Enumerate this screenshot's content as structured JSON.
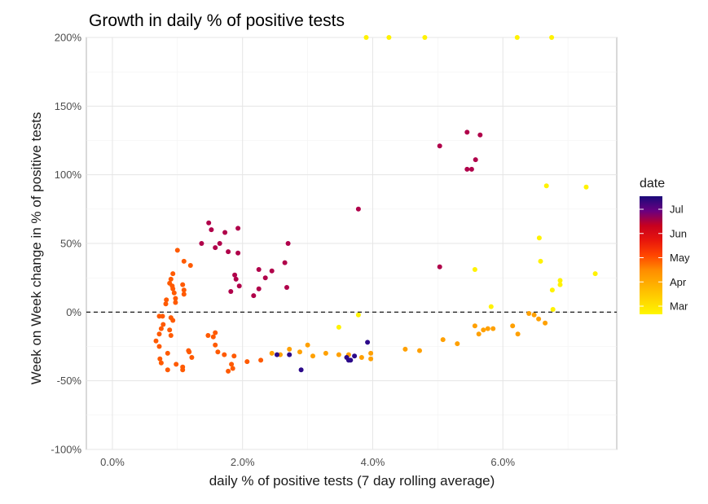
{
  "chart_data": {
    "type": "scatter",
    "title": "Growth in daily % of positive tests",
    "xlabel": "daily % of positive tests (7 day rolling average)",
    "ylabel": "Week on Week change in % of positive tests",
    "xlim": [
      -0.004,
      0.0775
    ],
    "ylim": [
      -1.0,
      2.0
    ],
    "x_ticks": [
      0.0,
      0.02,
      0.04,
      0.06
    ],
    "x_tick_labels": [
      "0.0%",
      "2.0%",
      "4.0%",
      "6.0%"
    ],
    "y_ticks": [
      -1.0,
      -0.5,
      0.0,
      0.5,
      1.0,
      1.5,
      2.0
    ],
    "y_tick_labels": [
      "-100%",
      "-50%",
      "0%",
      "50%",
      "100%",
      "150%",
      "200%"
    ],
    "reference_line": {
      "y": 0,
      "style": "dashed"
    },
    "grid": true,
    "legend": {
      "title": "date",
      "placement": "right",
      "type": "gradient",
      "labels": [
        "Jul",
        "Jun",
        "May",
        "Apr",
        "Mar"
      ],
      "colors": [
        "#1a0a7a",
        "#6a0080",
        "#c8001e",
        "#e8160c",
        "#ff4500",
        "#ff8c00",
        "#ffb000",
        "#ffd400",
        "#fff700"
      ]
    },
    "points": [
      {
        "x": 0.039,
        "y": 2.0,
        "date": "Mar"
      },
      {
        "x": 0.0425,
        "y": 2.0,
        "date": "Mar"
      },
      {
        "x": 0.048,
        "y": 2.0,
        "date": "Mar"
      },
      {
        "x": 0.0622,
        "y": 2.0,
        "date": "Mar"
      },
      {
        "x": 0.0675,
        "y": 2.0,
        "date": "Mar"
      },
      {
        "x": 0.0667,
        "y": 0.92,
        "date": "Mar"
      },
      {
        "x": 0.0728,
        "y": 0.91,
        "date": "Mar"
      },
      {
        "x": 0.0656,
        "y": 0.54,
        "date": "Mar"
      },
      {
        "x": 0.0658,
        "y": 0.37,
        "date": "Mar"
      },
      {
        "x": 0.0557,
        "y": 0.31,
        "date": "Mar"
      },
      {
        "x": 0.0742,
        "y": 0.28,
        "date": "Mar"
      },
      {
        "x": 0.0688,
        "y": 0.23,
        "date": "Mar"
      },
      {
        "x": 0.0688,
        "y": 0.2,
        "date": "Mar"
      },
      {
        "x": 0.0676,
        "y": 0.16,
        "date": "Mar"
      },
      {
        "x": 0.0582,
        "y": 0.04,
        "date": "Mar"
      },
      {
        "x": 0.0677,
        "y": 0.02,
        "date": "Mar"
      },
      {
        "x": 0.0378,
        "y": -0.02,
        "date": "Mar"
      },
      {
        "x": 0.0348,
        "y": -0.11,
        "date": "Mar"
      },
      {
        "x": 0.064,
        "y": -0.01,
        "date": "Apr"
      },
      {
        "x": 0.0648,
        "y": -0.02,
        "date": "Apr"
      },
      {
        "x": 0.0655,
        "y": -0.05,
        "date": "Apr"
      },
      {
        "x": 0.0665,
        "y": -0.08,
        "date": "Apr"
      },
      {
        "x": 0.0615,
        "y": -0.1,
        "date": "Apr"
      },
      {
        "x": 0.0623,
        "y": -0.16,
        "date": "Apr"
      },
      {
        "x": 0.0557,
        "y": -0.1,
        "date": "Apr"
      },
      {
        "x": 0.0563,
        "y": -0.16,
        "date": "Apr"
      },
      {
        "x": 0.057,
        "y": -0.13,
        "date": "Apr"
      },
      {
        "x": 0.0577,
        "y": -0.12,
        "date": "Apr"
      },
      {
        "x": 0.0585,
        "y": -0.12,
        "date": "Apr"
      },
      {
        "x": 0.053,
        "y": -0.23,
        "date": "Apr"
      },
      {
        "x": 0.0508,
        "y": -0.2,
        "date": "Apr"
      },
      {
        "x": 0.045,
        "y": -0.27,
        "date": "Apr"
      },
      {
        "x": 0.0472,
        "y": -0.28,
        "date": "Apr"
      },
      {
        "x": 0.0397,
        "y": -0.3,
        "date": "Apr"
      },
      {
        "x": 0.0397,
        "y": -0.34,
        "date": "Apr"
      },
      {
        "x": 0.0383,
        "y": -0.33,
        "date": "Apr"
      },
      {
        "x": 0.0363,
        "y": -0.31,
        "date": "Apr"
      },
      {
        "x": 0.0348,
        "y": -0.31,
        "date": "Apr"
      },
      {
        "x": 0.0328,
        "y": -0.3,
        "date": "Apr"
      },
      {
        "x": 0.0308,
        "y": -0.32,
        "date": "Apr"
      },
      {
        "x": 0.03,
        "y": -0.24,
        "date": "Apr"
      },
      {
        "x": 0.0288,
        "y": -0.29,
        "date": "Apr"
      },
      {
        "x": 0.0272,
        "y": -0.27,
        "date": "Apr"
      },
      {
        "x": 0.0258,
        "y": -0.31,
        "date": "Apr"
      },
      {
        "x": 0.0245,
        "y": -0.3,
        "date": "Apr"
      },
      {
        "x": 0.0228,
        "y": -0.35,
        "date": "May"
      },
      {
        "x": 0.0207,
        "y": -0.36,
        "date": "May"
      },
      {
        "x": 0.0187,
        "y": -0.32,
        "date": "May"
      },
      {
        "x": 0.0183,
        "y": -0.38,
        "date": "May"
      },
      {
        "x": 0.0185,
        "y": -0.41,
        "date": "May"
      },
      {
        "x": 0.0178,
        "y": -0.43,
        "date": "May"
      },
      {
        "x": 0.0172,
        "y": -0.31,
        "date": "May"
      },
      {
        "x": 0.0162,
        "y": -0.29,
        "date": "May"
      },
      {
        "x": 0.0158,
        "y": -0.24,
        "date": "May"
      },
      {
        "x": 0.0155,
        "y": -0.18,
        "date": "May"
      },
      {
        "x": 0.0158,
        "y": -0.15,
        "date": "May"
      },
      {
        "x": 0.0147,
        "y": -0.17,
        "date": "May"
      },
      {
        "x": 0.0118,
        "y": -0.29,
        "date": "May"
      },
      {
        "x": 0.0117,
        "y": -0.28,
        "date": "May"
      },
      {
        "x": 0.0122,
        "y": -0.33,
        "date": "May"
      },
      {
        "x": 0.0108,
        "y": -0.4,
        "date": "May"
      },
      {
        "x": 0.0108,
        "y": -0.42,
        "date": "May"
      },
      {
        "x": 0.0098,
        "y": -0.38,
        "date": "May"
      },
      {
        "x": 0.0085,
        "y": -0.3,
        "date": "May"
      },
      {
        "x": 0.0085,
        "y": -0.42,
        "date": "May"
      },
      {
        "x": 0.0075,
        "y": -0.37,
        "date": "May"
      },
      {
        "x": 0.0073,
        "y": -0.34,
        "date": "May"
      },
      {
        "x": 0.0072,
        "y": -0.25,
        "date": "May"
      },
      {
        "x": 0.0067,
        "y": -0.21,
        "date": "May"
      },
      {
        "x": 0.0072,
        "y": -0.16,
        "date": "May"
      },
      {
        "x": 0.0075,
        "y": -0.12,
        "date": "May"
      },
      {
        "x": 0.0072,
        "y": -0.03,
        "date": "May"
      },
      {
        "x": 0.0077,
        "y": -0.03,
        "date": "May"
      },
      {
        "x": 0.0078,
        "y": -0.09,
        "date": "May"
      },
      {
        "x": 0.0088,
        "y": -0.13,
        "date": "May"
      },
      {
        "x": 0.009,
        "y": -0.17,
        "date": "May"
      },
      {
        "x": 0.0093,
        "y": -0.06,
        "date": "May"
      },
      {
        "x": 0.009,
        "y": -0.04,
        "date": "May"
      },
      {
        "x": 0.0082,
        "y": 0.06,
        "date": "May"
      },
      {
        "x": 0.0083,
        "y": 0.09,
        "date": "May"
      },
      {
        "x": 0.0097,
        "y": 0.07,
        "date": "May"
      },
      {
        "x": 0.0097,
        "y": 0.1,
        "date": "May"
      },
      {
        "x": 0.0095,
        "y": 0.14,
        "date": "May"
      },
      {
        "x": 0.0093,
        "y": 0.17,
        "date": "May"
      },
      {
        "x": 0.0092,
        "y": 0.19,
        "date": "May"
      },
      {
        "x": 0.0088,
        "y": 0.21,
        "date": "May"
      },
      {
        "x": 0.009,
        "y": 0.24,
        "date": "May"
      },
      {
        "x": 0.0093,
        "y": 0.28,
        "date": "May"
      },
      {
        "x": 0.01,
        "y": 0.45,
        "date": "May"
      },
      {
        "x": 0.011,
        "y": 0.16,
        "date": "May"
      },
      {
        "x": 0.0108,
        "y": 0.2,
        "date": "May"
      },
      {
        "x": 0.011,
        "y": 0.13,
        "date": "May"
      },
      {
        "x": 0.011,
        "y": 0.37,
        "date": "May"
      },
      {
        "x": 0.012,
        "y": 0.34,
        "date": "May"
      },
      {
        "x": 0.0137,
        "y": 0.5,
        "date": "Jun"
      },
      {
        "x": 0.0148,
        "y": 0.65,
        "date": "Jun"
      },
      {
        "x": 0.0152,
        "y": 0.6,
        "date": "Jun"
      },
      {
        "x": 0.0158,
        "y": 0.47,
        "date": "Jun"
      },
      {
        "x": 0.0165,
        "y": 0.5,
        "date": "Jun"
      },
      {
        "x": 0.0173,
        "y": 0.58,
        "date": "Jun"
      },
      {
        "x": 0.0178,
        "y": 0.44,
        "date": "Jun"
      },
      {
        "x": 0.0193,
        "y": 0.61,
        "date": "Jun"
      },
      {
        "x": 0.0193,
        "y": 0.43,
        "date": "Jun"
      },
      {
        "x": 0.0188,
        "y": 0.27,
        "date": "Jun"
      },
      {
        "x": 0.019,
        "y": 0.24,
        "date": "Jun"
      },
      {
        "x": 0.0195,
        "y": 0.19,
        "date": "Jun"
      },
      {
        "x": 0.0182,
        "y": 0.15,
        "date": "Jun"
      },
      {
        "x": 0.0217,
        "y": 0.12,
        "date": "Jun"
      },
      {
        "x": 0.0225,
        "y": 0.17,
        "date": "Jun"
      },
      {
        "x": 0.0225,
        "y": 0.31,
        "date": "Jun"
      },
      {
        "x": 0.0235,
        "y": 0.25,
        "date": "Jun"
      },
      {
        "x": 0.0245,
        "y": 0.3,
        "date": "Jun"
      },
      {
        "x": 0.0265,
        "y": 0.36,
        "date": "Jun"
      },
      {
        "x": 0.027,
        "y": 0.5,
        "date": "Jun"
      },
      {
        "x": 0.0268,
        "y": 0.18,
        "date": "Jun"
      },
      {
        "x": 0.0378,
        "y": 0.75,
        "date": "Jun"
      },
      {
        "x": 0.0503,
        "y": 0.33,
        "date": "Jun"
      },
      {
        "x": 0.0503,
        "y": 1.21,
        "date": "Jun"
      },
      {
        "x": 0.0545,
        "y": 1.31,
        "date": "Jun"
      },
      {
        "x": 0.0565,
        "y": 1.29,
        "date": "Jun"
      },
      {
        "x": 0.0558,
        "y": 1.11,
        "date": "Jun"
      },
      {
        "x": 0.0545,
        "y": 1.04,
        "date": "Jun"
      },
      {
        "x": 0.0552,
        "y": 1.04,
        "date": "Jun"
      },
      {
        "x": 0.0392,
        "y": -0.22,
        "date": "Jul"
      },
      {
        "x": 0.0253,
        "y": -0.31,
        "date": "Jul"
      },
      {
        "x": 0.0272,
        "y": -0.31,
        "date": "Jul"
      },
      {
        "x": 0.029,
        "y": -0.42,
        "date": "Jul"
      },
      {
        "x": 0.036,
        "y": -0.33,
        "date": "Jul"
      },
      {
        "x": 0.0363,
        "y": -0.35,
        "date": "Jul"
      },
      {
        "x": 0.0366,
        "y": -0.35,
        "date": "Jul"
      },
      {
        "x": 0.0372,
        "y": -0.32,
        "date": "Jul"
      }
    ]
  }
}
